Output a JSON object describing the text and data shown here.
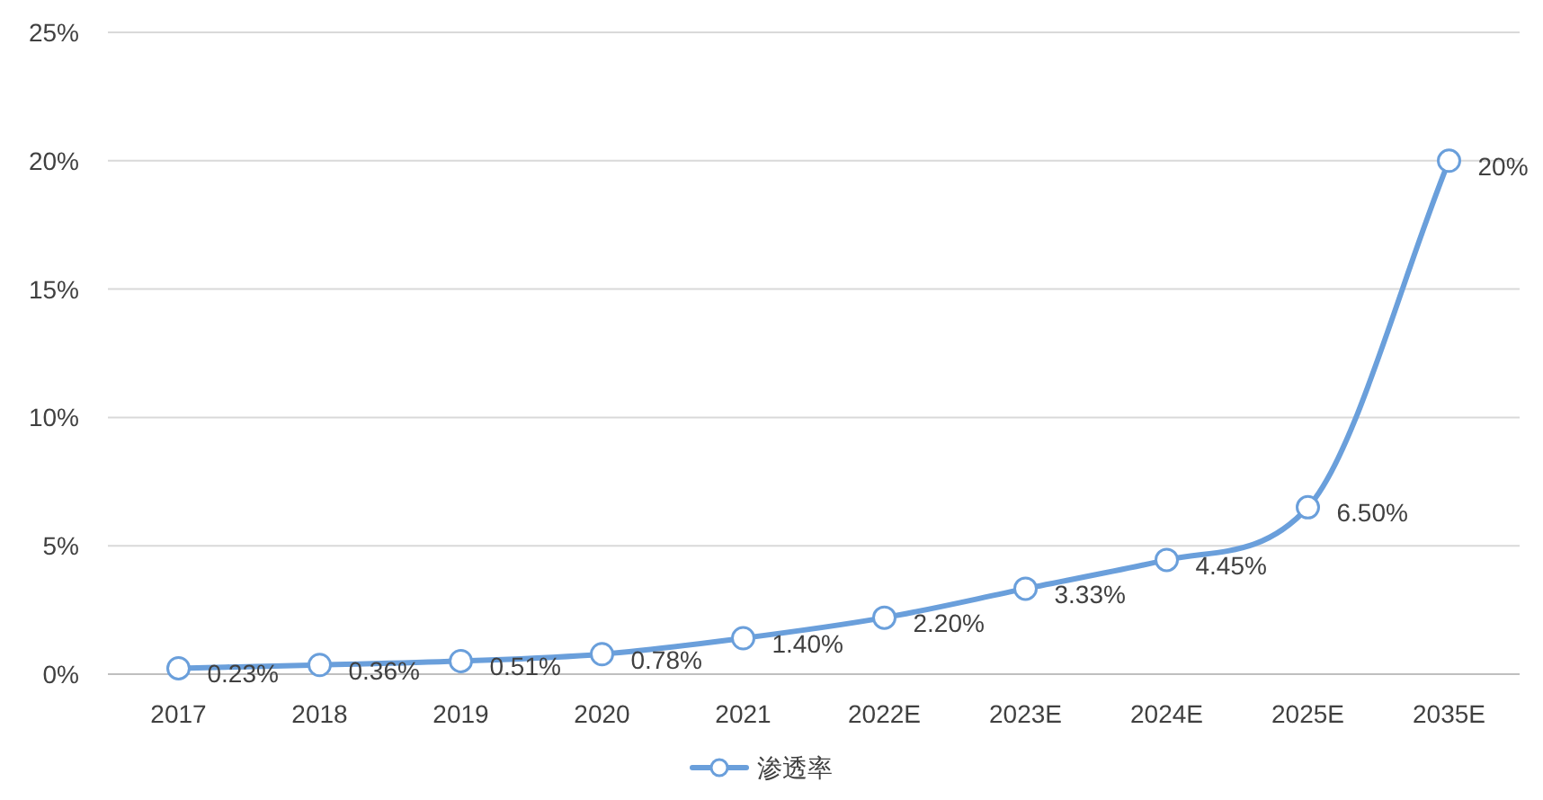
{
  "chart_data": {
    "type": "line",
    "categories": [
      "2017",
      "2018",
      "2019",
      "2020",
      "2021",
      "2022E",
      "2023E",
      "2024E",
      "2025E",
      "2035E"
    ],
    "series": [
      {
        "name": "渗透率",
        "color": "#6a9fdb",
        "values": [
          0.23,
          0.36,
          0.51,
          0.78,
          1.4,
          2.2,
          3.33,
          4.45,
          6.5,
          20
        ],
        "value_labels": [
          "0.23%",
          "0.36%",
          "0.51%",
          "0.78%",
          "1.40%",
          "2.20%",
          "3.33%",
          "4.45%",
          "6.50%",
          "20%"
        ]
      }
    ],
    "ylim": [
      0,
      25
    ],
    "yticks": [
      {
        "value": 0,
        "label": "0%"
      },
      {
        "value": 5,
        "label": "5%"
      },
      {
        "value": 10,
        "label": "10%"
      },
      {
        "value": 15,
        "label": "15%"
      },
      {
        "value": 20,
        "label": "20%"
      },
      {
        "value": 25,
        "label": "25%"
      }
    ],
    "grid": "y",
    "legend": "bottom",
    "marker": "circle",
    "line_style": "solid"
  }
}
